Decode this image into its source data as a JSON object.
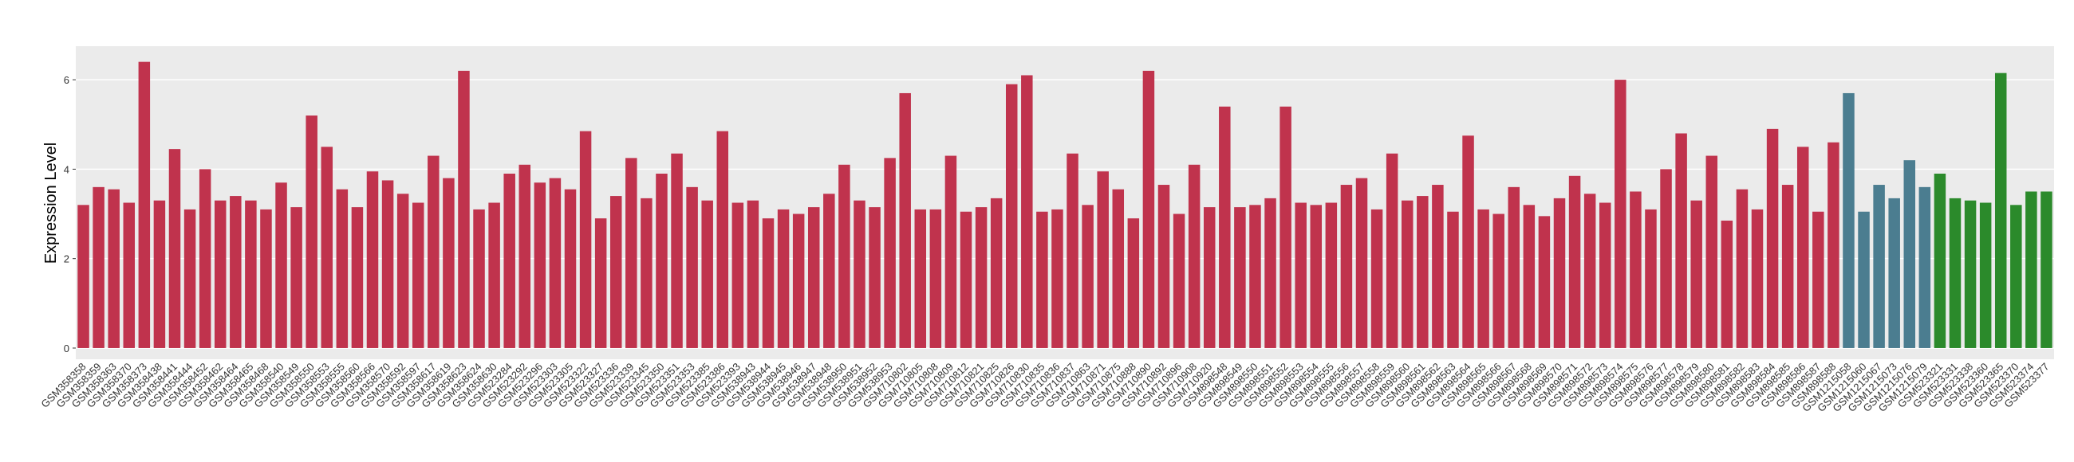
{
  "chart_data": {
    "type": "bar",
    "y_label": "Expression Level",
    "ylim": [
      -0.25,
      6.75
    ],
    "yticks": [
      0,
      2,
      4,
      6
    ],
    "grid": true,
    "series": [
      {
        "color": "#c0334d",
        "categories": [
          "GSM358358",
          "GSM358359",
          "GSM358363",
          "GSM358370",
          "GSM358373",
          "GSM358438",
          "GSM358441",
          "GSM358444",
          "GSM358452",
          "GSM358462",
          "GSM358464",
          "GSM358465",
          "GSM358468",
          "GSM358540",
          "GSM358549",
          "GSM358550",
          "GSM358553",
          "GSM358555",
          "GSM358560",
          "GSM358566",
          "GSM358570",
          "GSM358592",
          "GSM358597",
          "GSM358617",
          "GSM358619",
          "GSM358623",
          "GSM358624",
          "GSM358630",
          "GSM523284",
          "GSM523292",
          "GSM523296",
          "GSM523303",
          "GSM523305",
          "GSM523322",
          "GSM523327",
          "GSM523336",
          "GSM523339",
          "GSM523345",
          "GSM523350",
          "GSM523351",
          "GSM523353",
          "GSM523385",
          "GSM523386",
          "GSM523393",
          "GSM538943",
          "GSM538944",
          "GSM538945",
          "GSM538946",
          "GSM538947",
          "GSM538948",
          "GSM538950",
          "GSM538951",
          "GSM538952",
          "GSM538953",
          "GSM710802",
          "GSM710805",
          "GSM710808",
          "GSM710809",
          "GSM710812",
          "GSM710821",
          "GSM710825",
          "GSM710826",
          "GSM710830",
          "GSM710835",
          "GSM710836",
          "GSM710837",
          "GSM710863",
          "GSM710871",
          "GSM710875",
          "GSM710888",
          "GSM710890",
          "GSM710892",
          "GSM710896",
          "GSM710908",
          "GSM710920",
          "GSM898548",
          "GSM898549",
          "GSM898550",
          "GSM898551",
          "GSM898552",
          "GSM898553",
          "GSM898554",
          "GSM898555",
          "GSM898556",
          "GSM898557",
          "GSM898558",
          "GSM898559",
          "GSM898560",
          "GSM898561",
          "GSM898562",
          "GSM898563",
          "GSM898564",
          "GSM898565",
          "GSM898566",
          "GSM898567",
          "GSM898568",
          "GSM898569",
          "GSM898570",
          "GSM898571",
          "GSM898572",
          "GSM898573",
          "GSM898574",
          "GSM898575",
          "GSM898576",
          "GSM898577",
          "GSM898578",
          "GSM898579",
          "GSM898580",
          "GSM898581",
          "GSM898582",
          "GSM898583",
          "GSM898584",
          "GSM898585",
          "GSM898586",
          "GSM898587",
          "GSM898588"
        ],
        "values": [
          3.2,
          3.6,
          3.55,
          3.25,
          6.4,
          3.3,
          4.45,
          3.1,
          4.0,
          3.3,
          3.4,
          3.3,
          3.1,
          3.7,
          3.15,
          5.2,
          4.5,
          3.55,
          3.15,
          3.95,
          3.75,
          3.45,
          3.25,
          4.3,
          3.8,
          6.2,
          3.1,
          3.25,
          3.9,
          4.1,
          3.7,
          3.8,
          3.55,
          4.85,
          2.9,
          3.4,
          4.25,
          3.35,
          3.9,
          4.35,
          3.6,
          3.3,
          4.85,
          3.25,
          3.3,
          2.9,
          3.1,
          3.0,
          3.15,
          3.45,
          4.1,
          3.3,
          3.15,
          4.25,
          5.7,
          3.1,
          3.1,
          4.3,
          3.05,
          3.15,
          3.35,
          5.9,
          6.1,
          3.05,
          3.1,
          4.35,
          3.2,
          3.95,
          3.55,
          2.9,
          6.2,
          3.65,
          3.0,
          4.1,
          3.15,
          5.4,
          3.15,
          3.2,
          3.35,
          5.4,
          3.25,
          3.2,
          3.25,
          3.65,
          3.8,
          3.1,
          4.35,
          3.3,
          3.4,
          3.65,
          3.05,
          4.75,
          3.1,
          3.0,
          3.6,
          3.2,
          2.95,
          3.35,
          3.85,
          3.45,
          3.25,
          6.0,
          3.5,
          3.1,
          4.0,
          4.8,
          3.3,
          4.3,
          2.85,
          3.55,
          3.1,
          4.9,
          3.65,
          4.5,
          3.05,
          4.6
        ]
      },
      {
        "color": "#4b7d90",
        "categories": [
          "GSM1215058",
          "GSM1215060",
          "GSM1215067",
          "GSM1215073",
          "GSM1215076",
          "GSM1215079"
        ],
        "values": [
          5.7,
          3.05,
          3.65,
          3.35,
          4.2,
          3.6
        ]
      },
      {
        "color": "#2b8a2b",
        "categories": [
          "GSM523321",
          "GSM523331",
          "GSM523338",
          "GSM523360",
          "GSM523365",
          "GSM523370",
          "GSM523374",
          "GSM523377"
        ],
        "values": [
          3.9,
          3.35,
          3.3,
          3.25,
          6.15,
          3.2,
          3.5,
          3.5
        ]
      }
    ]
  }
}
